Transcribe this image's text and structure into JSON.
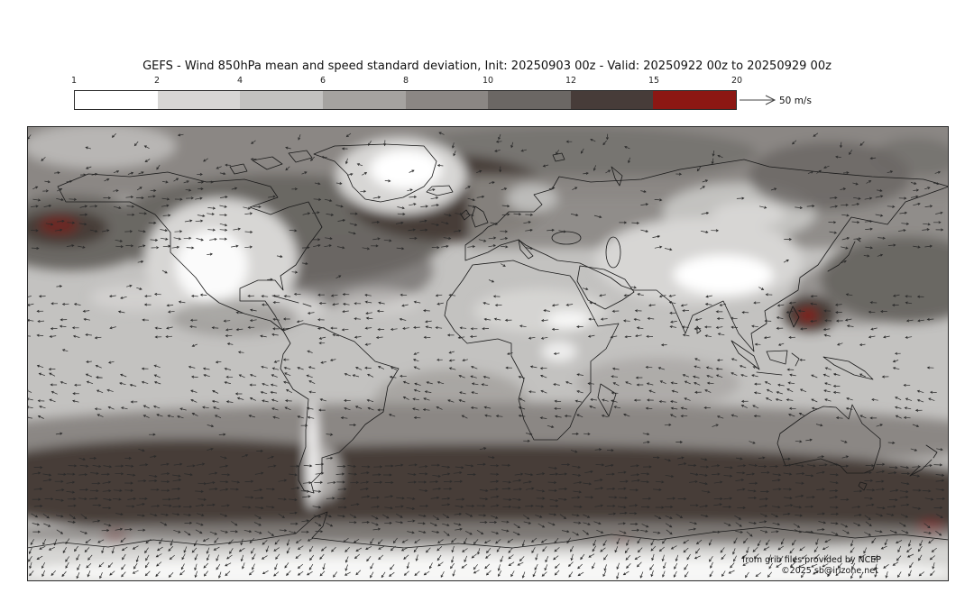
{
  "header": {
    "title": "GEFS - Wind 850hPa mean and speed standard deviation, Init: 20250903 00z - Valid: 20250922 00z to 20250929 00z"
  },
  "colorbar": {
    "ticks": [
      "1",
      "2",
      "4",
      "6",
      "8",
      "10",
      "12",
      "15",
      "20"
    ],
    "colors": [
      "#ffffff",
      "#d7d6d4",
      "#c3c2c0",
      "#a5a3a0",
      "#8b8784",
      "#6b6764",
      "#473c39",
      "#8c1713"
    ],
    "units": "m/s",
    "reference_arrow_label": "50 m/s"
  },
  "map": {
    "attribution_line1": "from grib files provided by NCEP",
    "attribution_line2": "©2025 sb@irlzone.net",
    "coastline_color": "#1a1a1a",
    "arrow_color": "#2a2a2a",
    "frame_color": "#2b2b2b"
  },
  "chart_data": {
    "type": "heatmap",
    "subtype": "global meteorological field map with wind vector overlay",
    "title": "GEFS - Wind 850hPa mean and speed standard deviation, Init: 20250903 00z - Valid: 20250922 00z to 20250929 00z",
    "model": "GEFS",
    "level": "850hPa",
    "init": "20250903 00z",
    "valid_from": "20250922 00z",
    "valid_to": "20250929 00z",
    "projection": "equirectangular, global (90N-90S, 180W-180E)",
    "shading_variable": "ensemble wind speed standard deviation",
    "vector_variable": "ensemble mean wind",
    "colorbar": {
      "orientation": "horizontal",
      "units": "m/s",
      "tick_values": [
        1,
        2,
        4,
        6,
        8,
        10,
        12,
        15,
        20
      ],
      "segment_colors": [
        "#ffffff",
        "#d7d6d4",
        "#c3c2c0",
        "#a5a3a0",
        "#8b8784",
        "#6b6764",
        "#473c39",
        "#8c1713"
      ]
    },
    "vector_reference": {
      "label": "50 m/s"
    },
    "notable_features": [
      "broad high-variability dark band (12-15 m/s) across the Southern Ocean near 50-60S with small >15 m/s maxima",
      "high-variability maximum (12-15 m/s) around Iceland / northern North Atlantic",
      "dark maroon maximum in the far Northeast Pacific at the left map edge",
      "small >15 m/s maximum east of the Philippines (typhoon region)",
      "very low variability (<2 m/s, white) over the Tibetan Plateau, western North America, Greenland and interior Antarctica",
      "westward trade-wind arrows in the tropics, eastward westerlies over the Southern Ocean and North Atlantic/Pacific storm tracks"
    ],
    "legend_position": "top, below title",
    "grid": false
  }
}
